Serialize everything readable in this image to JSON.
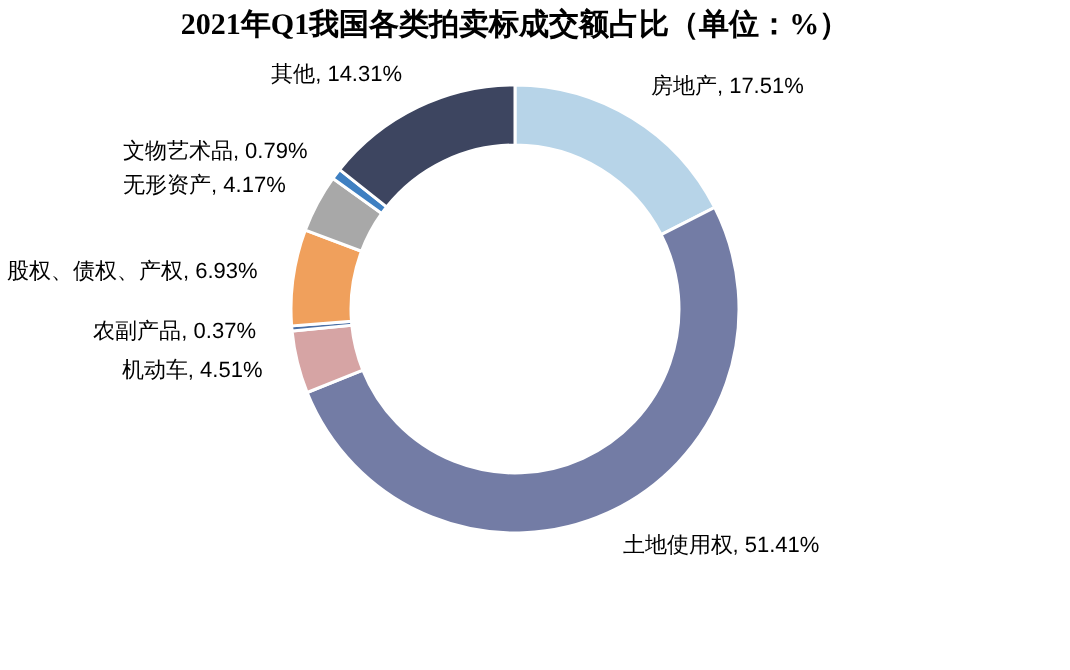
{
  "chart_data": {
    "type": "donut",
    "title": "2021年Q1我国各类拍卖标成交额占比（单位：%）",
    "categories": [
      "房地产",
      "土地使用权",
      "机动车",
      "农副产品",
      "股权、债权、产权",
      "无形资产",
      "文物艺术品",
      "其他"
    ],
    "values": [
      17.51,
      51.41,
      4.51,
      0.37,
      6.93,
      4.17,
      0.79,
      14.31
    ],
    "value_labels": [
      "17.51%",
      "51.41%",
      "4.51%",
      "0.37%",
      "6.93%",
      "4.17%",
      "0.79%",
      "14.31%"
    ],
    "colors": [
      "#b7d4e8",
      "#737ca5",
      "#d6a4a4",
      "#4a6fa5",
      "#f0a05c",
      "#a8a8a8",
      "#3f80c2",
      "#3d4560"
    ],
    "legend": false
  }
}
